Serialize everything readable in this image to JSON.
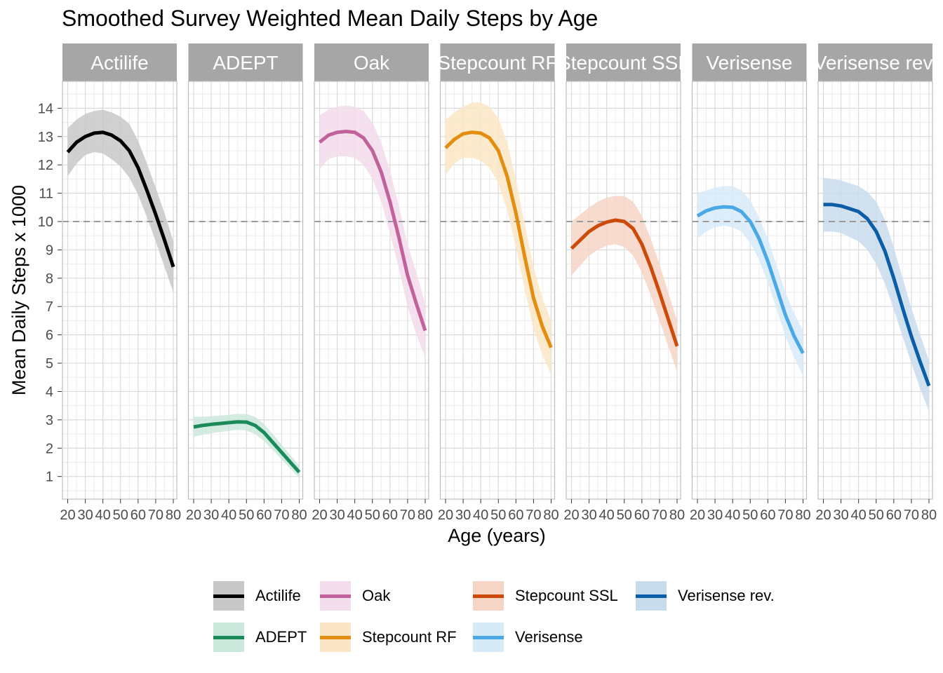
{
  "title": "Smoothed Survey Weighted Mean Daily Steps by Age",
  "chart_data": {
    "type": "line",
    "facet_by": "method",
    "xlabel": "Age (years)",
    "ylabel": "Mean Daily Steps x 1000",
    "xlim": [
      17,
      82
    ],
    "ylim": [
      0.2,
      14.95
    ],
    "x_ticks": [
      20,
      30,
      40,
      50,
      60,
      70,
      80
    ],
    "y_ticks": [
      1,
      2,
      3,
      4,
      5,
      6,
      7,
      8,
      9,
      10,
      11,
      12,
      13,
      14
    ],
    "reference_line": 10,
    "grid": true,
    "legend_position": "bottom",
    "panels": [
      {
        "name": "Actilife",
        "color": "#000000",
        "band_color": "#c8c8c8",
        "x": [
          20,
          25,
          30,
          35,
          40,
          45,
          50,
          55,
          60,
          65,
          70,
          75,
          80
        ],
        "y": [
          12.45,
          12.8,
          13.0,
          13.12,
          13.15,
          13.05,
          12.85,
          12.5,
          11.9,
          11.1,
          10.25,
          9.35,
          8.4
        ],
        "lower": [
          11.6,
          12.05,
          12.35,
          12.45,
          12.4,
          12.2,
          11.95,
          11.55,
          10.95,
          10.15,
          9.3,
          8.4,
          7.5
        ],
        "upper": [
          13.3,
          13.6,
          13.8,
          13.9,
          13.95,
          13.85,
          13.7,
          13.45,
          12.85,
          12.05,
          11.2,
          10.3,
          9.3
        ]
      },
      {
        "name": "ADEPT",
        "color": "#1b8a5a",
        "band_color": "#cbe8dc",
        "x": [
          20,
          25,
          30,
          35,
          40,
          45,
          50,
          55,
          60,
          65,
          70,
          75,
          80
        ],
        "y": [
          2.75,
          2.8,
          2.84,
          2.87,
          2.9,
          2.93,
          2.92,
          2.8,
          2.55,
          2.2,
          1.85,
          1.5,
          1.15
        ],
        "lower": [
          2.4,
          2.47,
          2.53,
          2.57,
          2.61,
          2.65,
          2.62,
          2.5,
          2.25,
          1.93,
          1.6,
          1.27,
          0.95
        ],
        "upper": [
          3.1,
          3.11,
          3.13,
          3.15,
          3.18,
          3.21,
          3.2,
          3.1,
          2.85,
          2.5,
          2.12,
          1.75,
          1.38
        ]
      },
      {
        "name": "Oak",
        "color": "#c2629d",
        "band_color": "#f3dceb",
        "x": [
          20,
          25,
          30,
          35,
          40,
          45,
          50,
          55,
          60,
          65,
          70,
          75,
          80
        ],
        "y": [
          12.8,
          13.05,
          13.15,
          13.18,
          13.15,
          12.95,
          12.5,
          11.75,
          10.7,
          9.45,
          8.1,
          7.1,
          6.15
        ],
        "lower": [
          11.85,
          12.2,
          12.3,
          12.3,
          12.25,
          12.0,
          11.5,
          10.7,
          9.6,
          8.35,
          7.0,
          6.0,
          5.2
        ],
        "upper": [
          13.75,
          13.95,
          14.05,
          14.1,
          14.05,
          13.9,
          13.5,
          12.8,
          11.8,
          10.55,
          9.2,
          8.2,
          7.1
        ]
      },
      {
        "name": "Stepcount RF",
        "color": "#e38e10",
        "band_color": "#fae6c6",
        "x": [
          20,
          25,
          30,
          35,
          40,
          45,
          50,
          55,
          60,
          65,
          70,
          75,
          80
        ],
        "y": [
          12.6,
          12.9,
          13.1,
          13.15,
          13.12,
          12.95,
          12.5,
          11.6,
          10.3,
          8.75,
          7.3,
          6.3,
          5.55
        ],
        "lower": [
          11.65,
          12.05,
          12.25,
          12.25,
          12.15,
          11.9,
          11.35,
          10.4,
          9.1,
          7.6,
          6.2,
          5.3,
          4.6
        ],
        "upper": [
          13.6,
          13.85,
          14.05,
          14.2,
          14.2,
          14.05,
          13.65,
          12.8,
          11.5,
          9.9,
          8.4,
          7.3,
          6.5
        ]
      },
      {
        "name": "Stepcount SSL",
        "color": "#cc4b0b",
        "band_color": "#f6d5c6",
        "x": [
          20,
          25,
          30,
          35,
          40,
          45,
          50,
          55,
          60,
          65,
          70,
          75,
          80
        ],
        "y": [
          9.05,
          9.35,
          9.65,
          9.85,
          9.98,
          10.05,
          10.0,
          9.75,
          9.2,
          8.4,
          7.5,
          6.55,
          5.6
        ],
        "lower": [
          8.1,
          8.45,
          8.8,
          9.0,
          9.15,
          9.2,
          9.1,
          8.8,
          8.2,
          7.4,
          6.5,
          5.6,
          4.7
        ],
        "upper": [
          10.0,
          10.25,
          10.5,
          10.7,
          10.85,
          10.9,
          10.9,
          10.7,
          10.2,
          9.4,
          8.5,
          7.5,
          6.5
        ]
      },
      {
        "name": "Verisense",
        "color": "#4aa8e6",
        "band_color": "#d7eaf8",
        "x": [
          20,
          25,
          30,
          35,
          40,
          45,
          50,
          55,
          60,
          65,
          70,
          75,
          80
        ],
        "y": [
          10.2,
          10.38,
          10.48,
          10.52,
          10.5,
          10.35,
          10.0,
          9.4,
          8.6,
          7.65,
          6.7,
          5.95,
          5.35
        ],
        "lower": [
          9.4,
          9.65,
          9.8,
          9.85,
          9.8,
          9.65,
          9.25,
          8.65,
          7.85,
          6.9,
          5.95,
          5.2,
          4.55
        ],
        "upper": [
          11.0,
          11.1,
          11.2,
          11.25,
          11.25,
          11.1,
          10.75,
          10.15,
          9.4,
          8.45,
          7.5,
          6.75,
          6.15
        ]
      },
      {
        "name": "Verisense rev.",
        "color": "#0b5ea6",
        "band_color": "#c9dcec",
        "x": [
          20,
          25,
          30,
          35,
          40,
          45,
          50,
          55,
          60,
          65,
          70,
          75,
          80
        ],
        "y": [
          10.6,
          10.6,
          10.55,
          10.45,
          10.35,
          10.1,
          9.65,
          8.95,
          8.0,
          6.95,
          5.95,
          5.05,
          4.2
        ],
        "lower": [
          9.65,
          9.65,
          9.6,
          9.45,
          9.3,
          9.0,
          8.5,
          7.8,
          6.9,
          5.95,
          5.0,
          4.1,
          3.3
        ],
        "upper": [
          11.55,
          11.5,
          11.45,
          11.35,
          11.25,
          11.05,
          10.7,
          10.05,
          9.1,
          8.0,
          6.95,
          6.0,
          5.1
        ]
      }
    ]
  },
  "legend": {
    "items": [
      {
        "label": "Actilife",
        "color": "#000000",
        "band_color": "#c8c8c8"
      },
      {
        "label": "ADEPT",
        "color": "#1b8a5a",
        "band_color": "#cbe8dc"
      },
      {
        "label": "Oak",
        "color": "#c2629d",
        "band_color": "#f3dceb"
      },
      {
        "label": "Stepcount RF",
        "color": "#e38e10",
        "band_color": "#fae6c6"
      },
      {
        "label": "Stepcount SSL",
        "color": "#cc4b0b",
        "band_color": "#f6d5c6"
      },
      {
        "label": "Verisense",
        "color": "#4aa8e6",
        "band_color": "#d7eaf8"
      },
      {
        "label": "Verisense rev.",
        "color": "#0b5ea6",
        "band_color": "#c9dcec"
      }
    ]
  }
}
